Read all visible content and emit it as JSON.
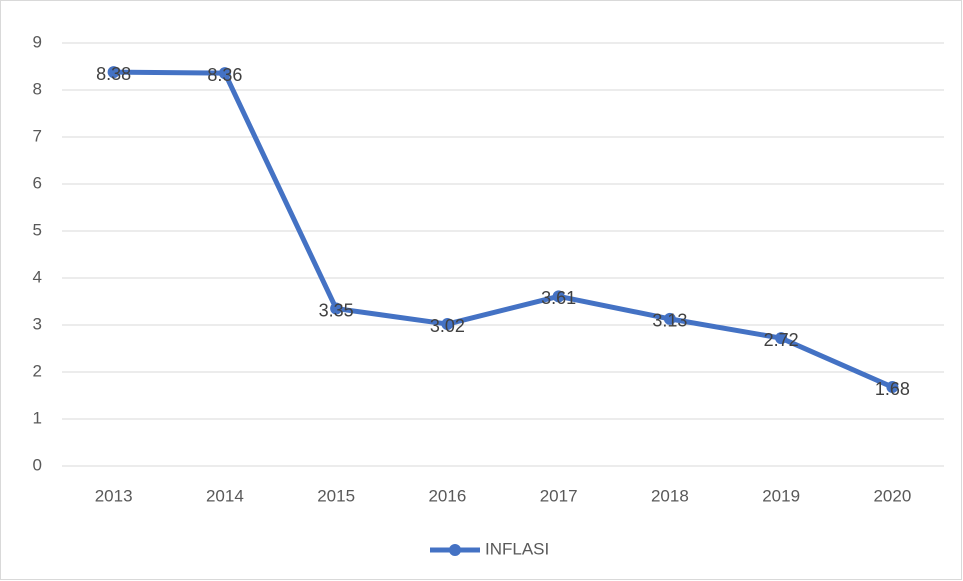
{
  "chart_data": {
    "type": "line",
    "categories": [
      "2013",
      "2014",
      "2015",
      "2016",
      "2017",
      "2018",
      "2019",
      "2020"
    ],
    "series": [
      {
        "name": "INFLASI",
        "color": "#4472c4",
        "values": [
          8.38,
          8.36,
          3.35,
          3.02,
          3.61,
          3.13,
          2.72,
          1.68
        ]
      }
    ],
    "ylim": [
      0,
      9
    ],
    "yticks": [
      0,
      1,
      2,
      3,
      4,
      5,
      6,
      7,
      8,
      9
    ],
    "grid": true,
    "legend": "bottom"
  }
}
